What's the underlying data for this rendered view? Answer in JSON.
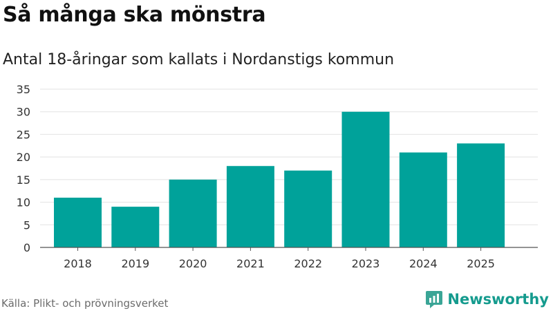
{
  "title": "Så många ska mönstra",
  "subtitle": "Antal 18-åringar som kallats i Nordanstigs kommun",
  "source": "Källa: Plikt- och prövningsverket",
  "brand": {
    "name": "Newsworthy",
    "icon": "newsworthy-logo-icon",
    "color": "#159b8e"
  },
  "colors": {
    "bar": "#00a29a",
    "grid": "#e2e2e2",
    "axis": "#555555"
  },
  "chart_data": {
    "type": "bar",
    "title": "Så många ska mönstra",
    "subtitle": "Antal 18-åringar som kallats i Nordanstigs kommun",
    "categories": [
      "2018",
      "2019",
      "2020",
      "2021",
      "2022",
      "2023",
      "2024",
      "2025"
    ],
    "values": [
      11,
      9,
      15,
      18,
      17,
      30,
      21,
      23
    ],
    "xlabel": "",
    "ylabel": "",
    "ylim": [
      0,
      35
    ],
    "yticks": [
      0,
      5,
      10,
      15,
      20,
      25,
      30,
      35
    ],
    "grid": true,
    "legend": "none"
  }
}
